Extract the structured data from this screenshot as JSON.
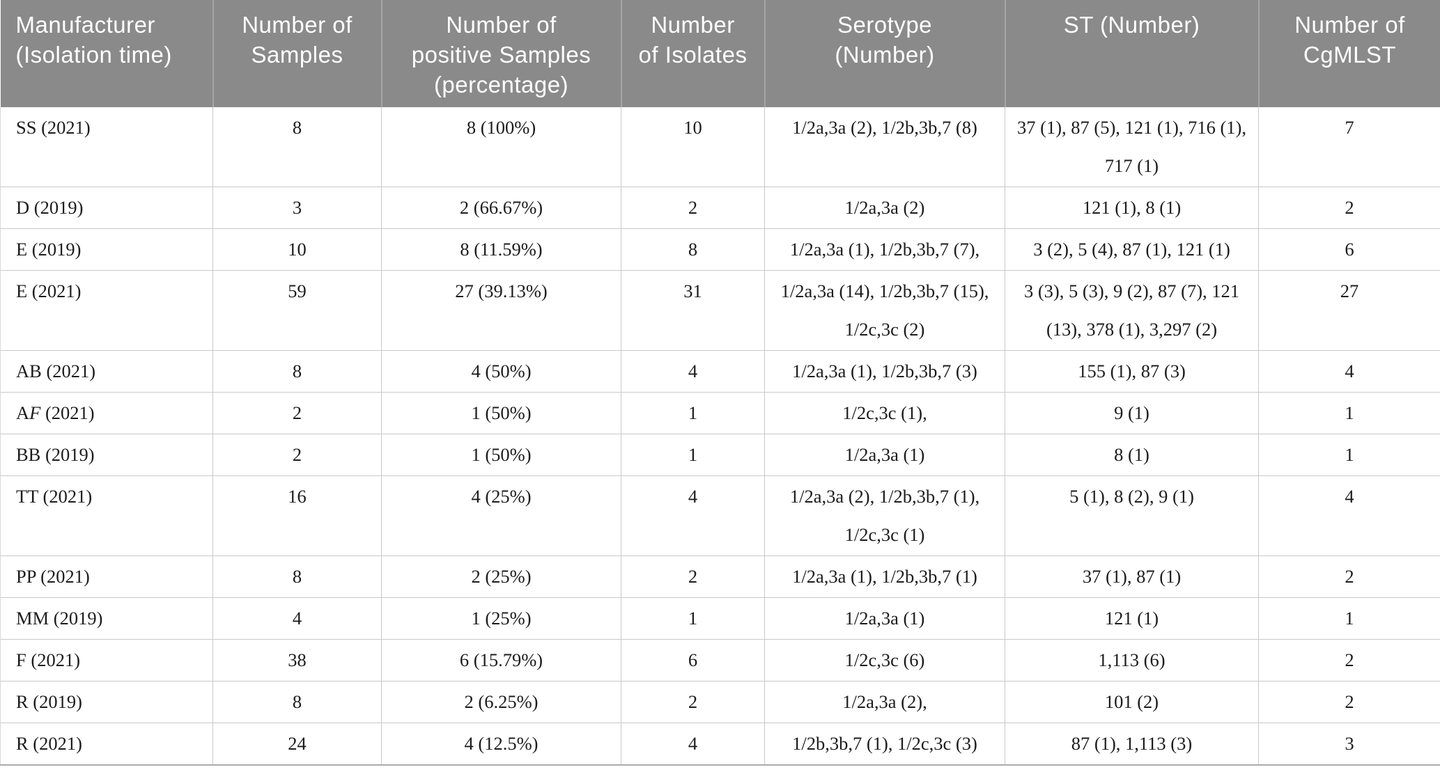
{
  "colors": {
    "header_background": "#8a8a8a",
    "header_text": "#ffffff",
    "header_divider": "#a6a6a6",
    "body_text": "#1c1c1c",
    "grid_line": "#c9c9c9",
    "outer_side_border": "#d8d8d8",
    "bottom_border": "#ababab"
  },
  "table": {
    "columns": [
      {
        "key": "manufacturer",
        "label": "Manufacturer\n(Isolation time)"
      },
      {
        "key": "samples",
        "label": "Number of\nSamples"
      },
      {
        "key": "positive",
        "label": "Number of\npositive Samples\n(percentage)"
      },
      {
        "key": "isolates",
        "label": "Number\nof Isolates"
      },
      {
        "key": "serotype",
        "label": "Serotype\n(Number)"
      },
      {
        "key": "st",
        "label": "ST (Number)"
      },
      {
        "key": "cgmlst",
        "label": "Number of\nCgMLST"
      }
    ],
    "rows": [
      {
        "manufacturer": [
          {
            "text": "SS (2021)"
          }
        ],
        "samples": "8",
        "positive": "8 (100%)",
        "isolates": "10",
        "serotype": "1/2a,3a (2), 1/2b,3b,7 (8)",
        "st": "37 (1), 87 (5), 121 (1), 716 (1), 717 (1)",
        "cgmlst": "7"
      },
      {
        "manufacturer": [
          {
            "text": "D (2019)"
          }
        ],
        "samples": "3",
        "positive": "2 (66.67%)",
        "isolates": "2",
        "serotype": "1/2a,3a (2)",
        "st": "121 (1), 8 (1)",
        "cgmlst": "2"
      },
      {
        "manufacturer": [
          {
            "text": "E (2019)"
          }
        ],
        "samples": "10",
        "positive": "8 (11.59%)",
        "isolates": "8",
        "serotype": "1/2a,3a (1), 1/2b,3b,7 (7),",
        "st": "3 (2), 5 (4), 87 (1), 121 (1)",
        "cgmlst": "6"
      },
      {
        "manufacturer": [
          {
            "text": "E (2021)"
          }
        ],
        "samples": "59",
        "positive": "27 (39.13%)",
        "isolates": "31",
        "serotype": "1/2a,3a (14), 1/2b,3b,7 (15), 1/2c,3c (2)",
        "st": "3 (3), 5 (3), 9 (2), 87 (7), 121 (13), 378 (1), 3,297 (2)",
        "cgmlst": "27"
      },
      {
        "manufacturer": [
          {
            "text": "AB (2021)"
          }
        ],
        "samples": "8",
        "positive": "4 (50%)",
        "isolates": "4",
        "serotype": "1/2a,3a (1), 1/2b,3b,7 (3)",
        "st": "155 (1), 87 (3)",
        "cgmlst": "4"
      },
      {
        "manufacturer": [
          {
            "text": "A"
          },
          {
            "text": "F",
            "italic": true
          },
          {
            "text": " (2021)"
          }
        ],
        "samples": "2",
        "positive": "1 (50%)",
        "isolates": "1",
        "serotype": "1/2c,3c (1),",
        "st": "9 (1)",
        "cgmlst": "1"
      },
      {
        "manufacturer": [
          {
            "text": "BB (2019)"
          }
        ],
        "samples": "2",
        "positive": "1 (50%)",
        "isolates": "1",
        "serotype": "1/2a,3a (1)",
        "st": "8 (1)",
        "cgmlst": "1"
      },
      {
        "manufacturer": [
          {
            "text": "TT (2021)"
          }
        ],
        "samples": "16",
        "positive": "4 (25%)",
        "isolates": "4",
        "serotype": "1/2a,3a (2), 1/2b,3b,7 (1), 1/2c,3c (1)",
        "st": "5 (1), 8 (2), 9 (1)",
        "cgmlst": "4"
      },
      {
        "manufacturer": [
          {
            "text": "PP (2021)"
          }
        ],
        "samples": "8",
        "positive": "2 (25%)",
        "isolates": "2",
        "serotype": "1/2a,3a (1), 1/2b,3b,7 (1)",
        "st": "37 (1), 87 (1)",
        "cgmlst": "2"
      },
      {
        "manufacturer": [
          {
            "text": "MM (2019)"
          }
        ],
        "samples": "4",
        "positive": "1 (25%)",
        "isolates": "1",
        "serotype": "1/2a,3a (1)",
        "st": "121 (1)",
        "cgmlst": "1"
      },
      {
        "manufacturer": [
          {
            "text": "F (2021)"
          }
        ],
        "samples": "38",
        "positive": "6 (15.79%)",
        "isolates": "6",
        "serotype": "1/2c,3c (6)",
        "st": "1,113 (6)",
        "cgmlst": "2"
      },
      {
        "manufacturer": [
          {
            "text": "R (2019)"
          }
        ],
        "samples": "8",
        "positive": "2 (6.25%)",
        "isolates": "2",
        "serotype": "1/2a,3a (2),",
        "st": "101 (2)",
        "cgmlst": "2"
      },
      {
        "manufacturer": [
          {
            "text": "R (2021)"
          }
        ],
        "samples": "24",
        "positive": "4 (12.5%)",
        "isolates": "4",
        "serotype": "1/2b,3b,7 (1), 1/2c,3c (3)",
        "st": "87 (1), 1,113 (3)",
        "cgmlst": "3"
      }
    ]
  }
}
